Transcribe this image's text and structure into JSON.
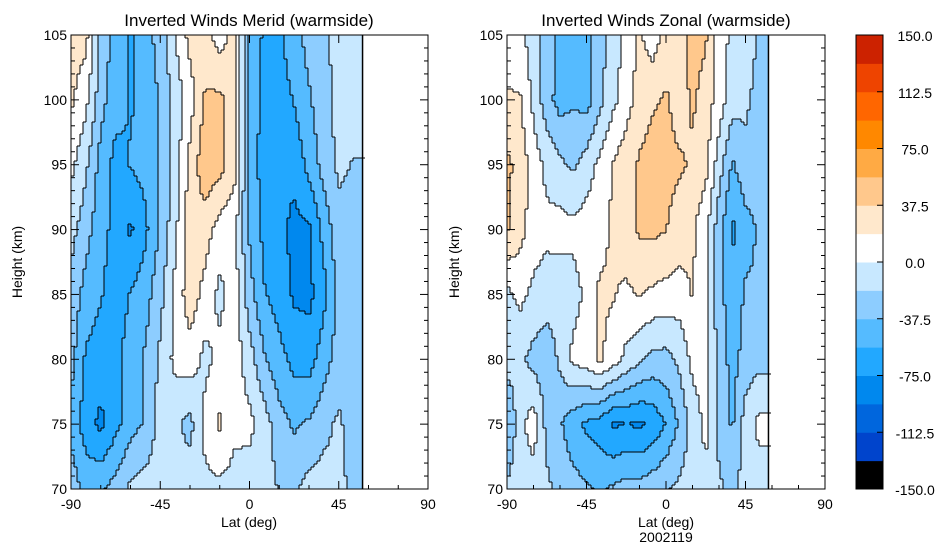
{
  "chart_data": [
    {
      "type": "heatmap",
      "title": "Inverted Winds Merid (warmside)",
      "xlabel": "Lat (deg)",
      "ylabel": "Height (km)",
      "xlim": [
        -90,
        90
      ],
      "ylim": [
        70,
        105
      ],
      "xticks": [
        "-90",
        "-45",
        "0",
        "45",
        "90"
      ],
      "yticks": [
        "70",
        "75",
        "80",
        "85",
        "90",
        "95",
        "100",
        "105"
      ],
      "data_lat_max": 57,
      "lat": [
        -90,
        -82.5,
        -75,
        -67.5,
        -60,
        -52.5,
        -45,
        -37.5,
        -30,
        -22.5,
        -15,
        -7.5,
        0,
        7.5,
        15,
        22.5,
        30,
        37.5,
        45,
        52.5
      ],
      "height": [
        105,
        100,
        95,
        90,
        85,
        80,
        75,
        70
      ],
      "values": [
        [
          28,
          25,
          -25,
          -45,
          -60,
          -45,
          -30,
          0,
          25,
          25,
          10,
          25,
          -40,
          -60,
          -60,
          -45,
          -30,
          -25,
          -10,
          -10
        ],
        [
          22,
          5,
          -30,
          -50,
          -58,
          -50,
          -35,
          -12,
          10,
          40,
          42,
          25,
          -45,
          -62,
          -65,
          -55,
          -40,
          -25,
          -12,
          -10
        ],
        [
          5,
          -15,
          -45,
          -62,
          -55,
          -50,
          -35,
          -10,
          25,
          50,
          45,
          25,
          -45,
          -65,
          -70,
          -70,
          -50,
          -30,
          -15,
          -20
        ],
        [
          -12,
          -30,
          -50,
          -62,
          -78,
          -60,
          -35,
          -5,
          30,
          28,
          10,
          5,
          -40,
          -62,
          -70,
          -80,
          -78,
          -50,
          -25,
          -25
        ],
        [
          -25,
          -45,
          -55,
          -65,
          -55,
          -45,
          -25,
          5,
          30,
          12,
          -5,
          10,
          -30,
          -55,
          -65,
          -78,
          -80,
          -62,
          -30,
          -30
        ],
        [
          -30,
          -60,
          -65,
          -60,
          -50,
          -35,
          -15,
          5,
          10,
          -5,
          5,
          10,
          -10,
          -35,
          -50,
          -62,
          -65,
          -45,
          -30,
          -35
        ],
        [
          -45,
          -65,
          -80,
          -62,
          -45,
          -35,
          -10,
          -15,
          -25,
          5,
          22,
          5,
          5,
          -10,
          -30,
          -40,
          -35,
          -25,
          -15,
          -30
        ],
        [
          -25,
          -45,
          -40,
          -30,
          -15,
          -10,
          -10,
          -12,
          -8,
          -5,
          -5,
          -8,
          -10,
          -10,
          -20,
          -22,
          -12,
          -10,
          -12,
          -25
        ]
      ]
    },
    {
      "type": "heatmap",
      "title": "Inverted Winds Zonal (warmside)",
      "xlabel": "Lat (deg)",
      "ylabel": "Height (km)",
      "date_label": "2002119",
      "xlim": [
        -90,
        90
      ],
      "ylim": [
        70,
        105
      ],
      "xticks": [
        "-90",
        "-45",
        "0",
        "45",
        "90"
      ],
      "yticks": [
        "70",
        "75",
        "80",
        "85",
        "90",
        "95",
        "100",
        "105"
      ],
      "data_lat_max": 58,
      "lat": [
        -90,
        -82.5,
        -75,
        -67.5,
        -60,
        -52.5,
        -45,
        -37.5,
        -30,
        -22.5,
        -15,
        -7.5,
        0,
        7.5,
        15,
        22.5,
        30,
        37.5,
        45,
        52.5
      ],
      "height": [
        105,
        100,
        95,
        90,
        85,
        80,
        75,
        70
      ],
      "values": [
        [
          5,
          5,
          -10,
          -25,
          -45,
          -45,
          -45,
          -25,
          -10,
          5,
          22,
          8,
          25,
          30,
          45,
          40,
          10,
          -5,
          -10,
          -20
        ],
        [
          22,
          20,
          -5,
          -30,
          -45,
          -40,
          -45,
          -25,
          -5,
          10,
          28,
          35,
          40,
          30,
          40,
          30,
          10,
          -10,
          -15,
          -25
        ],
        [
          42,
          30,
          10,
          -5,
          -15,
          -22,
          -10,
          5,
          20,
          30,
          40,
          45,
          42,
          40,
          35,
          25,
          -10,
          -40,
          -25,
          -30
        ],
        [
          40,
          25,
          10,
          5,
          8,
          5,
          10,
          12,
          22,
          30,
          40,
          42,
          38,
          30,
          22,
          5,
          -30,
          -60,
          -45,
          -35
        ],
        [
          -5,
          5,
          -5,
          -10,
          -12,
          -8,
          5,
          22,
          20,
          15,
          20,
          15,
          12,
          10,
          20,
          5,
          -30,
          -50,
          -35,
          -35
        ],
        [
          -10,
          -15,
          -25,
          -30,
          -15,
          5,
          10,
          22,
          10,
          -5,
          -15,
          -25,
          -25,
          -15,
          5,
          5,
          -25,
          -45,
          -30,
          -25
        ],
        [
          -40,
          -5,
          10,
          -25,
          -35,
          -50,
          -60,
          -65,
          -78,
          -75,
          -78,
          -70,
          -55,
          -35,
          -10,
          5,
          -25,
          -40,
          -10,
          5
        ],
        [
          -15,
          -10,
          -10,
          -15,
          -25,
          -30,
          -35,
          -40,
          -35,
          -30,
          -30,
          -25,
          -20,
          -15,
          -10,
          -5,
          -15,
          -25,
          -10,
          -10
        ]
      ]
    }
  ],
  "colorbar": {
    "min": -150,
    "max": 150,
    "tick_labels": [
      "150.0",
      "112.5",
      "75.0",
      "37.5",
      "0.0",
      "-37.5",
      "-75.0",
      "-112.5",
      "-150.0"
    ],
    "colors_low_to_high": [
      "#000000",
      "#0044cc",
      "#0066dd",
      "#0088ee",
      "#22a8ff",
      "#55bbff",
      "#8dcdff",
      "#c8e8ff",
      "#ffffff",
      "#ffe8cc",
      "#ffc88c",
      "#ffaa44",
      "#ff8800",
      "#ff6600",
      "#ee4400",
      "#cc2200"
    ]
  }
}
